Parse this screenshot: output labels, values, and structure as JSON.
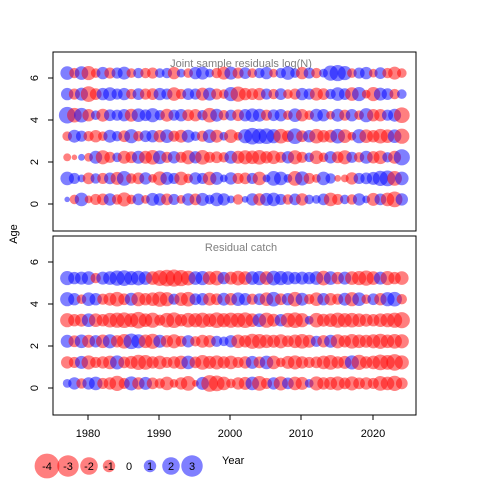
{
  "chart_data": {
    "type": "scatter",
    "subtype": "bubble",
    "ylabel": "Age",
    "legend_title": "Year",
    "positive_color": "#0000ff",
    "negative_color": "#ff0000",
    "xlim": [
      1974,
      2025
    ],
    "ylim": [
      -1.5,
      7.0
    ],
    "xticks": [
      "1980",
      "1990",
      "2000",
      "2010",
      "2020"
    ],
    "yticks": [
      "0",
      "2",
      "4",
      "6"
    ],
    "years": [
      1976,
      1977,
      1978,
      1979,
      1980,
      1981,
      1982,
      1983,
      1984,
      1985,
      1986,
      1987,
      1988,
      1989,
      1990,
      1991,
      1992,
      1993,
      1994,
      1995,
      1996,
      1997,
      1998,
      1999,
      2000,
      2001,
      2002,
      2003,
      2004,
      2005,
      2006,
      2007,
      2008,
      2009,
      2010,
      2011,
      2012,
      2013,
      2014,
      2015,
      2016,
      2017,
      2018,
      2019,
      2020,
      2021,
      2022,
      2023
    ],
    "ages": [
      0,
      1,
      2,
      3,
      4,
      5,
      6
    ],
    "legend": [
      {
        "label": "-4",
        "value": -4
      },
      {
        "label": "-3",
        "value": -3
      },
      {
        "label": "-2",
        "value": -2
      },
      {
        "label": "-1",
        "value": -1
      },
      {
        "label": "0",
        "value": 0
      },
      {
        "label": "1",
        "value": 1
      },
      {
        "label": "2",
        "value": 2
      },
      {
        "label": "3",
        "value": 3
      }
    ],
    "panels": [
      {
        "title": "Joint sample residuals log(N)",
        "residuals": [
          [
            0.2,
            -0.6,
            1.2,
            -0.4,
            -0.8,
            -0.9,
            1.0,
            -0.7,
            -1.3,
            -0.6,
            0.9,
            -0.5,
            1.1,
            1.0,
            -0.9,
            0.8,
            -0.5,
            1.0,
            -0.9,
            1.1,
            0.6,
            1.2,
            1.0,
            0.4,
            -0.7,
            0.3,
            1.0,
            -1.0,
            1.1,
            1.2,
            0.8,
            -0.7,
            0.9,
            -1.0,
            0.6,
            0.5,
            0.9,
            -1.2,
            -0.8,
            0.6,
            -0.7,
            1.0,
            0.4,
            -1.1,
            0.9,
            -1.2,
            -1.6,
            1.0
          ],
          [
            1.2,
            0.8,
            0.4,
            -0.9,
            0.7,
            -0.8,
            0.9,
            -1.1,
            1.4,
            -0.7,
            -0.9,
            1.0,
            -0.5,
            -1.3,
            1.1,
            0.8,
            -1.2,
            -0.6,
            1.0,
            0.8,
            -1.2,
            1.1,
            0.4,
            1.0,
            -0.8,
            -0.9,
            0.8,
            -1.2,
            0.4,
            1.4,
            1.2,
            0.5,
            -1.4,
            1.3,
            -0.8,
            -0.5,
            1.2,
            0.7,
            -0.3,
            -0.4,
            -1.0,
            0.8,
            0.9,
            1.1,
            1.5,
            1.6,
            -1.4,
            1.2
          ],
          [
            -0.4,
            -0.2,
            0.3,
            -0.5,
            1.1,
            -1.3,
            -0.8,
            0.6,
            -1.1,
            -0.9,
            1.1,
            -1.1,
            -1.4,
            1.2,
            -0.8,
            1.0,
            -0.8,
            -1.3,
            1.0,
            -1.4,
            -0.8,
            -0.9,
            -0.7,
            1.1,
            -1.1,
            -1.3,
            -1.2,
            -1.4,
            -1.0,
            -1.2,
            -0.8,
            1.0,
            -1.3,
            -0.8,
            0.6,
            -1.2,
            -0.6,
            1.0,
            -0.9,
            -1.3,
            0.8,
            -0.7,
            1.1,
            -1.0,
            -1.2,
            0.7,
            -1.1,
            1.7
          ],
          [
            -0.6,
            1.1,
            0.8,
            -0.7,
            -1.0,
            -0.6,
            1.1,
            0.7,
            -0.9,
            1.3,
            -0.7,
            0.9,
            1.0,
            -1.0,
            1.2,
            -0.8,
            -1.1,
            1.1,
            0.6,
            -0.8,
            1.2,
            -1.1,
            0.5,
            -1.2,
            -0.5,
            1.3,
            1.8,
            1.5,
            1.6,
            1.3,
            -1.4,
            -0.9,
            1.6,
            -0.9,
            1.0,
            -1.4,
            -1.0,
            -1.1,
            1.4,
            -1.2,
            -0.5,
            1.3,
            -1.2,
            -1.0,
            -1.4,
            -1.2,
            1.2,
            -1.5
          ],
          [
            1.8,
            -1.4,
            1.4,
            -1.0,
            0.6,
            -1.1,
            0.9,
            0.8,
            1.0,
            -1.1,
            1.2,
            0.9,
            1.3,
            0.7,
            -1.1,
            0.8,
            1.0,
            -0.9,
            -1.0,
            0.7,
            -1.4,
            1.1,
            -0.7,
            0.8,
            -0.9,
            1.0,
            1.2,
            1.1,
            -0.8,
            0.9,
            1.0,
            -0.6,
            1.2,
            -1.0,
            -0.6,
            1.1,
            1.0,
            -0.5,
            1.1,
            -0.8,
            1.0,
            -0.6,
            1.3,
            -1.0,
            -1.0,
            0.8,
            1.1,
            -1.6
          ],
          [
            1.0,
            -0.8,
            1.1,
            -1.6,
            -0.9,
            1.0,
            1.2,
            0.8,
            1.0,
            -0.7,
            0.9,
            -0.8,
            -0.9,
            1.0,
            0.8,
            -1.2,
            -0.7,
            0.9,
            0.8,
            -1.1,
            1.1,
            -0.8,
            -0.6,
            1.3,
            -1.5,
            -1.0,
            -0.9,
            -1.0,
            0.8,
            -0.7,
            0.9,
            -0.6,
            -0.8,
            1.0,
            0.8,
            -1.1,
            -0.9,
            0.7,
            1.2,
            0.9,
            -1.2,
            1.3,
            -0.5,
            -1.3,
            1.1,
            0.9,
            -0.7,
            0.6
          ],
          [
            1.2,
            -0.7,
            1.2,
            -1.3,
            -0.6,
            1.0,
            -0.8,
            0.8,
            1.1,
            -0.6,
            0.7,
            -0.7,
            -0.8,
            0.6,
            0.7,
            -1.0,
            0.5,
            -0.6,
            1.0,
            1.1,
            0.5,
            -0.7,
            -1.1,
            1.1,
            -0.8,
            0.9,
            -0.6,
            0.7,
            1.0,
            -0.5,
            0.7,
            1.2,
            0.6,
            -1.0,
            0.8,
            -0.7,
            0.5,
            1.5,
            1.7,
            1.3,
            -0.6,
            0.8,
            1.0,
            -0.5,
            0.9,
            -0.7,
            -1.1,
            -0.6
          ]
        ]
      },
      {
        "title": "Residual catch",
        "residuals": [
          [
            0.5,
            1.0,
            -0.7,
            1.0,
            1.2,
            -0.8,
            -1.0,
            -1.5,
            -0.8,
            1.3,
            -1.0,
            1.1,
            -0.9,
            -0.7,
            -1.2,
            -0.5,
            -1.0,
            -1.4,
            -0.3,
            1.1,
            -1.8,
            -1.6,
            -1.2,
            -0.6,
            -1.0,
            -1.1,
            1.2,
            -1.4,
            -0.8,
            1.0,
            -1.3,
            0.9,
            -1.2,
            -1.1,
            0.5,
            -1.3,
            -1.0,
            -1.1,
            -1.3,
            -0.9,
            -1.3,
            -0.9,
            -1.0,
            -0.8,
            -1.4,
            -1.2,
            -1.5,
            -0.9
          ],
          [
            -1.0,
            -0.8,
            1.1,
            -1.3,
            -0.8,
            -1.0,
            -1.2,
            1.3,
            -0.9,
            -1.1,
            -1.5,
            -1.4,
            -1.0,
            -1.2,
            -0.8,
            -1.0,
            -1.2,
            1.2,
            -0.9,
            -1.4,
            -1.1,
            -1.3,
            -1.0,
            -1.2,
            -0.8,
            -1.0,
            1.1,
            -0.9,
            1.2,
            -1.2,
            -0.6,
            -1.1,
            -1.3,
            -1.0,
            -0.8,
            -0.9,
            -1.2,
            -1.4,
            -1.0,
            -1.1,
            1.3,
            -1.5,
            -1.0,
            -1.2,
            -1.6,
            -1.4,
            -1.8,
            -1.3
          ],
          [
            1.1,
            -0.9,
            1.2,
            -1.1,
            1.0,
            -1.2,
            1.3,
            -1.0,
            -1.4,
            1.6,
            1.3,
            -1.2,
            -1.5,
            1.1,
            -1.0,
            -1.3,
            -0.8,
            1.0,
            -0.7,
            -1.1,
            -1.0,
            0.8,
            0.6,
            1.0,
            -1.2,
            -1.0,
            -1.5,
            -1.4,
            -1.2,
            -1.1,
            -1.3,
            -0.9,
            -1.2,
            -1.4,
            -1.1,
            0.8,
            -1.0,
            1.1,
            -1.3,
            -1.0,
            -1.4,
            -1.2,
            -1.1,
            -1.3,
            -1.5,
            -1.2,
            -1.4,
            -1.3
          ],
          [
            -1.3,
            -1.0,
            -1.1,
            1.2,
            -1.2,
            -1.0,
            -1.4,
            -1.5,
            -1.6,
            -1.3,
            -1.8,
            -1.2,
            -1.5,
            -0.8,
            -1.4,
            -1.6,
            -1.0,
            -1.4,
            -1.3,
            -1.5,
            -1.2,
            -1.6,
            -1.3,
            -1.5,
            -1.4,
            -1.6,
            -1.2,
            1.2,
            -1.5,
            -1.1,
            1.0,
            -1.4,
            -1.6,
            -1.3,
            0.5,
            -1.4,
            -1.1,
            -1.2,
            -1.5,
            -1.3,
            -1.4,
            -1.2,
            -1.1,
            -1.0,
            -1.2,
            -1.3,
            -1.5,
            -1.7
          ],
          [
            1.3,
            1.0,
            -0.6,
            1.2,
            1.0,
            -0.8,
            -1.1,
            -1.4,
            -0.9,
            1.1,
            -1.3,
            -1.0,
            -1.2,
            -1.5,
            -1.3,
            0.8,
            -1.2,
            -1.4,
            0.9,
            1.0,
            -1.1,
            -0.9,
            1.1,
            -1.0,
            1.2,
            1.0,
            -0.8,
            0.9,
            -1.2,
            1.4,
            -0.9,
            1.0,
            -1.4,
            1.1,
            -0.7,
            -1.2,
            1.0,
            -1.0,
            -0.8,
            1.1,
            -1.3,
            1.2,
            -0.6,
            0.9,
            -1.0,
            1.3,
            1.4,
            -0.7
          ],
          [
            1.3,
            1.0,
            1.1,
            1.2,
            -0.7,
            1.1,
            1.2,
            1.5,
            1.6,
            1.3,
            1.4,
            1.2,
            -1.2,
            -1.6,
            -1.8,
            -1.9,
            -1.7,
            -1.4,
            1.2,
            1.3,
            -1.2,
            -1.4,
            1.0,
            -1.1,
            -1.4,
            -1.2,
            1.2,
            1.3,
            -1.2,
            1.4,
            1.3,
            1.2,
            1.0,
            1.1,
            1.0,
            1.2,
            -1.4,
            1.2,
            -1.0,
            1.1,
            -1.2,
            -1.3,
            -1.5,
            -1.2,
            1.1,
            -1.3,
            -1.0,
            -1.2
          ],
          []
        ]
      }
    ]
  }
}
